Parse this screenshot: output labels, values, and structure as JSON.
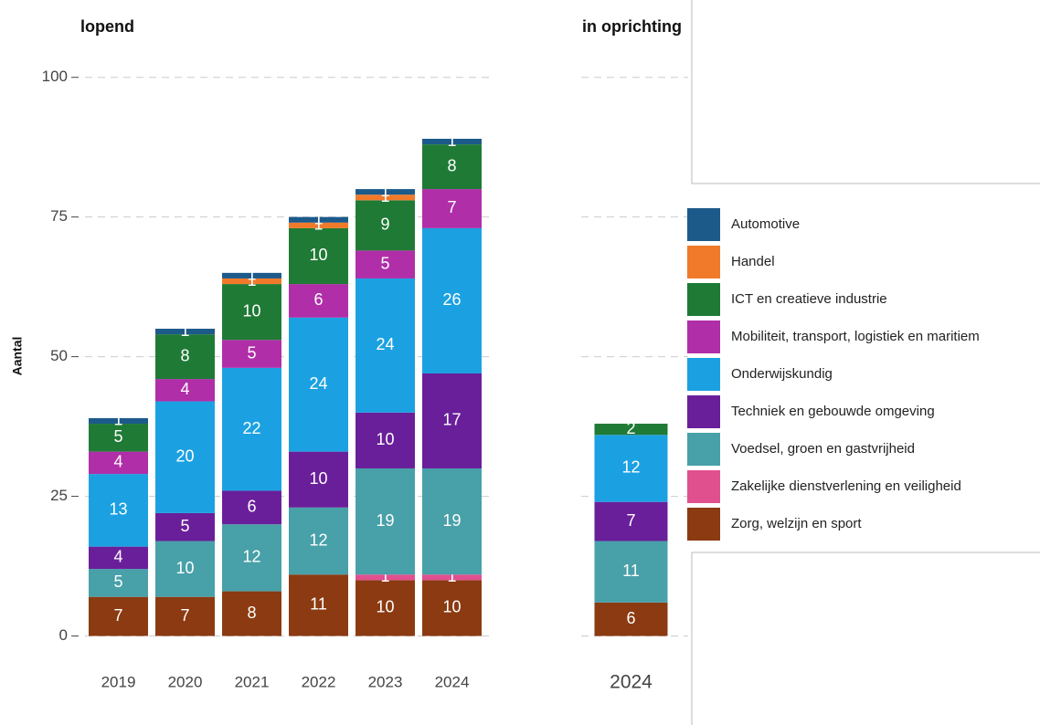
{
  "chart_data": {
    "type": "bar",
    "stacked": true,
    "ylabel": "Aantal",
    "ylim": [
      -4,
      106
    ],
    "yticks": [
      0,
      25,
      50,
      75,
      100
    ],
    "grid": true,
    "legend": "right",
    "panels": [
      {
        "title": "lopend",
        "categories": [
          "2019",
          "2020",
          "2021",
          "2022",
          "2023",
          "2024"
        ]
      },
      {
        "title": "in oprichting",
        "categories": [
          "2024"
        ]
      }
    ],
    "series": [
      {
        "name": "Zorg, welzijn en sport",
        "color": "#8b3a12",
        "values": [
          [
            7,
            7,
            8,
            11,
            10,
            10
          ],
          [
            6
          ]
        ]
      },
      {
        "name": "Zakelijke dienstverlening en veiligheid",
        "color": "#e0508f",
        "values": [
          [
            0,
            0,
            0,
            0,
            1,
            1
          ],
          [
            0
          ]
        ]
      },
      {
        "name": "Voedsel, groen en gastvrijheid",
        "color": "#48a0a8",
        "values": [
          [
            5,
            10,
            12,
            12,
            19,
            19
          ],
          [
            11
          ]
        ]
      },
      {
        "name": "Techniek en gebouwde omgeving",
        "color": "#6a1f9a",
        "values": [
          [
            4,
            5,
            6,
            10,
            10,
            17
          ],
          [
            7
          ]
        ]
      },
      {
        "name": "Onderwijskundig",
        "color": "#1ba1e2",
        "values": [
          [
            13,
            20,
            22,
            24,
            24,
            26
          ],
          [
            12
          ]
        ]
      },
      {
        "name": "Mobiliteit, transport, logistiek en maritiem",
        "color": "#b02ea8",
        "values": [
          [
            4,
            4,
            5,
            6,
            5,
            7
          ],
          [
            0
          ]
        ]
      },
      {
        "name": "ICT en creatieve industrie",
        "color": "#1f7a35",
        "values": [
          [
            5,
            8,
            10,
            10,
            9,
            8
          ],
          [
            2
          ]
        ]
      },
      {
        "name": "Handel",
        "color": "#f07a2a",
        "values": [
          [
            0,
            0,
            1,
            1,
            1,
            0
          ],
          [
            0
          ]
        ]
      },
      {
        "name": "Automotive",
        "color": "#1c5a8a",
        "values": [
          [
            1,
            1,
            1,
            1,
            1,
            1
          ],
          [
            0
          ]
        ]
      }
    ]
  }
}
